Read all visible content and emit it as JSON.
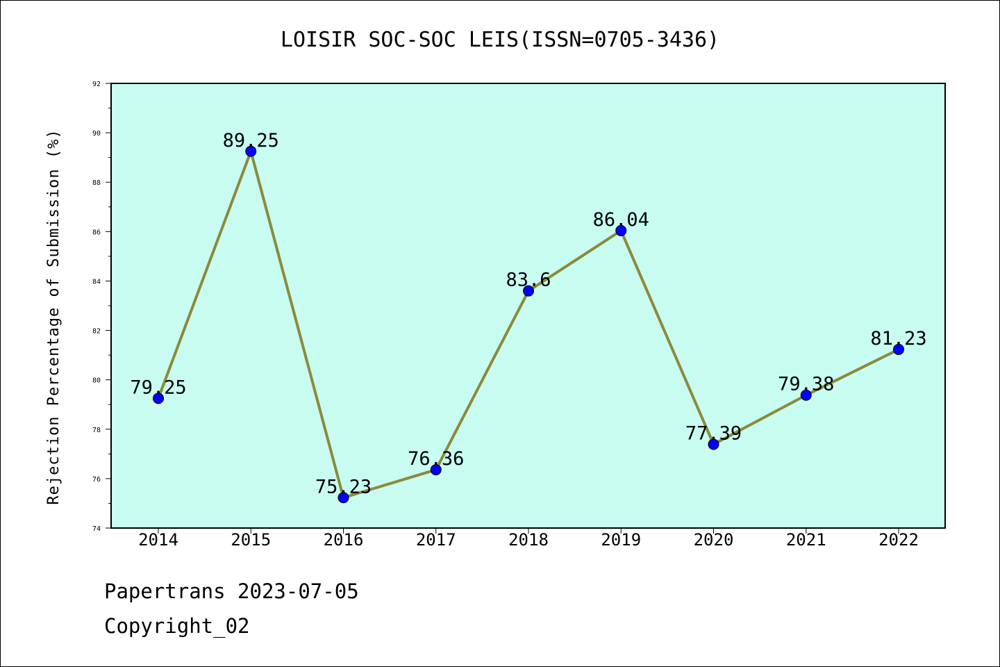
{
  "chart_data": {
    "type": "line",
    "title": "LOISIR SOC-SOC LEIS(ISSN=0705-3436)",
    "xlabel": "",
    "ylabel": "Rejection Percentage of Submission (%)",
    "categories": [
      "2014",
      "2015",
      "2016",
      "2017",
      "2018",
      "2019",
      "2020",
      "2021",
      "2022"
    ],
    "series": [
      {
        "values": [
          79.25,
          89.25,
          75.23,
          76.36,
          83.6,
          86.04,
          77.39,
          79.38,
          81.23
        ],
        "labels": [
          "79.25",
          "89.25",
          "75.23",
          "76.36",
          "83.6",
          "86.04",
          "77.39",
          "79.38",
          "81.23"
        ]
      }
    ],
    "ylim": [
      74,
      92
    ],
    "yticks": [
      "74",
      "76",
      "78",
      "80",
      "82",
      "84",
      "86",
      "88",
      "90",
      "92"
    ],
    "grid": false,
    "colors": {
      "plot_background": "#c8fcf0",
      "line": "#8b8a3c",
      "marker": "#0000ff"
    }
  },
  "footer": {
    "line1": "Papertrans 2023-07-05",
    "line2": "Copyright_02"
  }
}
